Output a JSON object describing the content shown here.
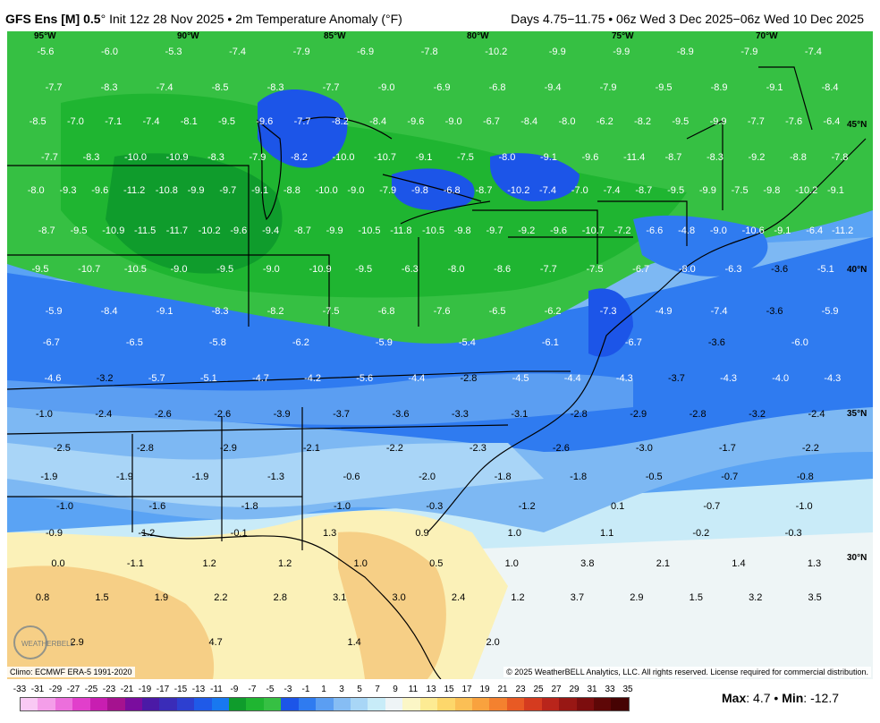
{
  "header": {
    "model": "GFS Ens [M] 0.5",
    "init": "Init 12z 28 Nov 2025",
    "variable": "2m Temperature Anomaly (°F)",
    "valid": "Days 4.75−11.75 • 06z Wed 3 Dec 2025−06z Wed 10 Dec 2025"
  },
  "longitude_labels": [
    "95°W",
    "90°W",
    "85°W",
    "80°W",
    "75°W",
    "70°W"
  ],
  "latitude_labels": [
    "45°N",
    "40°N",
    "35°N",
    "30°N"
  ],
  "map_values": [
    "-5.6",
    "-6.0",
    "-5.3",
    "-7.4",
    "-7.9",
    "-6.9",
    "-7.8",
    "-10.2",
    "-9.9",
    "-9.9",
    "-8.9",
    "-7.9",
    "-7.4",
    "-7.7",
    "-8.3",
    "-7.4",
    "-8.5",
    "-8.3",
    "-7.7",
    "-9.0",
    "-6.9",
    "-6.8",
    "-9.4",
    "-7.9",
    "-9.5",
    "-8.9",
    "-9.1",
    "-8.4",
    "-8.5",
    "-7.0",
    "-7.1",
    "-7.4",
    "-8.1",
    "-9.5",
    "-9.6",
    "-7.7",
    "-8.2",
    "-8.4",
    "-9.6",
    "-9.0",
    "-6.7",
    "-8.4",
    "-8.0",
    "-6.2",
    "-8.2",
    "-9.5",
    "-9.9",
    "-7.7",
    "-7.6",
    "-6.4",
    "-7.7",
    "-8.3",
    "-10.0",
    "-10.9",
    "-8.3",
    "-7.9",
    "-8.2",
    "-10.0",
    "-10.7",
    "-9.1",
    "-7.5",
    "-8.0",
    "-9.1",
    "-9.6",
    "-11.4",
    "-8.7",
    "-8.3",
    "-9.2",
    "-8.8",
    "-7.8",
    "-8.0",
    "-9.3",
    "-9.6",
    "-11.2",
    "-10.8",
    "-9.9",
    "-9.7",
    "-9.1",
    "-8.8",
    "-10.0",
    "-9.0",
    "-7.9",
    "-9.8",
    "-6.8",
    "-8.7",
    "-10.2",
    "-7.4",
    "-7.0",
    "-7.4",
    "-8.7",
    "-9.5",
    "-9.9",
    "-7.5",
    "-9.8",
    "-10.2",
    "-9.1",
    "-8.7",
    "-9.5",
    "-10.9",
    "-11.5",
    "-11.7",
    "-10.2",
    "-9.6",
    "-9.4",
    "-8.7",
    "-9.9",
    "-10.5",
    "-11.8",
    "-10.5",
    "-9.8",
    "-9.7",
    "-9.2",
    "-9.6",
    "-10.7",
    "-7.2",
    "-6.6",
    "-4.8",
    "-9.0",
    "-10.6",
    "-9.1",
    "-6.4",
    "-11.2",
    "-9.5",
    "-10.7",
    "-10.5",
    "-9.0",
    "-9.5",
    "-9.0",
    "-10.9",
    "-9.5",
    "-6.3",
    "-8.0",
    "-8.6",
    "-7.7",
    "-7.5",
    "-6.7",
    "-8.0",
    "-6.3",
    "-3.6",
    "-5.1",
    "-5.9",
    "-8.4",
    "-9.1",
    "-8.3",
    "-8.2",
    "-7.5",
    "-6.8",
    "-7.6",
    "-6.5",
    "-6.2",
    "-7.3",
    "-4.9",
    "-7.4",
    "-3.6",
    "-5.9",
    "-6.7",
    "-6.5",
    "-5.8",
    "-6.2",
    "-5.9",
    "-5.4",
    "-6.1",
    "-6.7",
    "-3.6",
    "-6.0",
    "-4.6",
    "-3.2",
    "-5.7",
    "-5.1",
    "-4.7",
    "-4.2",
    "-5.6",
    "-4.4",
    "-2.8",
    "-4.5",
    "-4.4",
    "-4.3",
    "-3.7",
    "-4.3",
    "-4.0",
    "-4.3",
    "-1.0",
    "-2.4",
    "-2.6",
    "-2.6",
    "-3.9",
    "-3.7",
    "-3.6",
    "-3.3",
    "-3.1",
    "-2.8",
    "-2.9",
    "-2.8",
    "-3.2",
    "-2.4",
    "-2.5",
    "-2.8",
    "-2.9",
    "-2.1",
    "-2.2",
    "-2.3",
    "-2.6",
    "-3.0",
    "-1.7",
    "-2.2",
    "-1.9",
    "-1.9",
    "-1.9",
    "-1.3",
    "-0.6",
    "-2.0",
    "-1.8",
    "-1.8",
    "-0.5",
    "-0.7",
    "-0.8",
    "-1.0",
    "-1.6",
    "-1.8",
    "-1.0",
    "-0.3",
    "-1.2",
    "0.1",
    "-0.7",
    "-1.0",
    "-0.9",
    "-1.2",
    "-0.1",
    "1.3",
    "0.9",
    "1.0",
    "1.1",
    "-0.2",
    "-0.3",
    "0.0",
    "-1.1",
    "1.2",
    "1.2",
    "1.0",
    "0.5",
    "1.0",
    "3.8",
    "2.1",
    "1.4",
    "1.3",
    "0.8",
    "1.5",
    "1.9",
    "2.2",
    "2.8",
    "3.1",
    "3.0",
    "2.4",
    "1.2",
    "3.7",
    "2.9",
    "1.5",
    "3.2",
    "3.5",
    "2.9",
    "4.7",
    "1.4",
    "2.0"
  ],
  "colorbar": {
    "labels": [
      "-33",
      "-31",
      "-29",
      "-27",
      "-25",
      "-23",
      "-21",
      "-19",
      "-17",
      "-15",
      "-13",
      "-11",
      "-9",
      "-7",
      "-5",
      "-3",
      "-1",
      "1",
      "3",
      "5",
      "7",
      "9",
      "11",
      "13",
      "15",
      "17",
      "19",
      "21",
      "23",
      "25",
      "27",
      "29",
      "31",
      "33",
      "35"
    ],
    "colors": [
      "#f9c9f4",
      "#f49ee9",
      "#ec6fdc",
      "#e13fcb",
      "#c81eb1",
      "#a5128f",
      "#7a0d9e",
      "#4b1aa6",
      "#3a2cb8",
      "#2d3fd0",
      "#1f5ae8",
      "#1878f0",
      "#0f9c2c",
      "#1fb531",
      "#36c043",
      "#1c55e8",
      "#2f7bf0",
      "#5b9ef2",
      "#86bdf4",
      "#a8d6f6",
      "#c8ecf8",
      "#eef4f6",
      "#fbf6c6",
      "#fdeb93",
      "#fdd76b",
      "#fbbf55",
      "#f9a23e",
      "#f4812f",
      "#e85a24",
      "#d53b1f",
      "#b9251b",
      "#981714",
      "#7c0d0e",
      "#5e0707",
      "#460303"
    ]
  },
  "climo": "Climo: ECMWF ERA-5 1991-2020",
  "copyright": "© 2025 WeatherBELL Analytics, LLC. All rights reserved. License required for commercial distribution.",
  "stats": {
    "max_label": "Max",
    "max": "4.7",
    "min_label": "Min",
    "min": "-12.7"
  },
  "logo_text": "WEATHERBELL",
  "colors": {
    "deep_green": "#0e9b2b",
    "green": "#33b543",
    "blue": "#1e5ae8",
    "light_blue": "#7db8f3",
    "pale": "#e8f4fb",
    "yellow": "#fbeea0",
    "orange": "#f4c47a"
  }
}
